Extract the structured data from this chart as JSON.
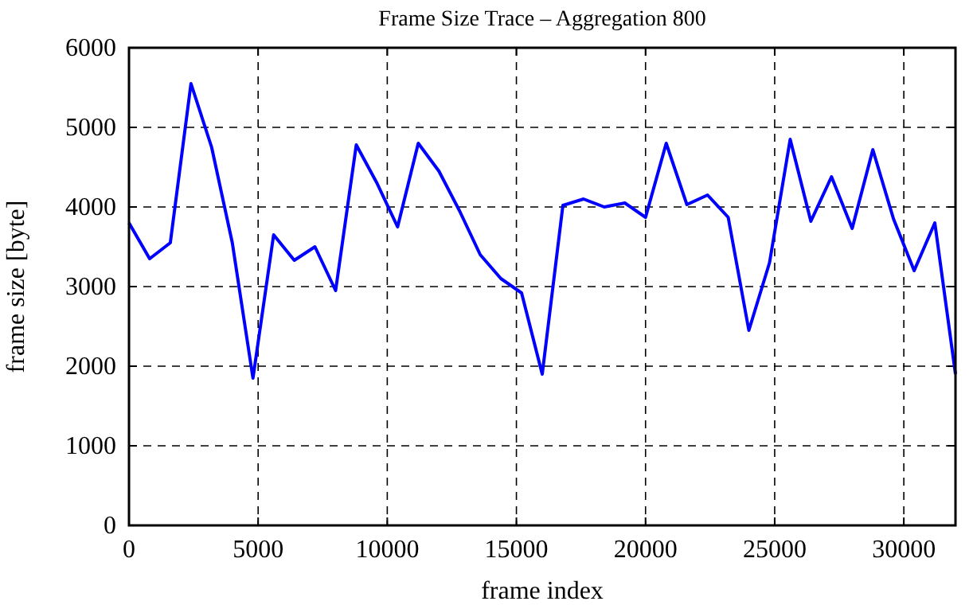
{
  "chart_data": {
    "type": "line",
    "title": "Frame Size Trace – Aggregation 800",
    "xlabel": "frame index",
    "ylabel": "frame size [byte]",
    "x": [
      0,
      800,
      1600,
      2400,
      3200,
      4000,
      4800,
      5600,
      6400,
      7200,
      8000,
      8800,
      9600,
      10400,
      11200,
      12000,
      12800,
      13600,
      14400,
      15200,
      16000,
      16800,
      17600,
      18400,
      19200,
      20000,
      20800,
      21600,
      22400,
      23200,
      24000,
      24800,
      25600,
      26400,
      27200,
      28000,
      28800,
      29600,
      30400,
      31200,
      32000
    ],
    "series": [
      {
        "color": "#0000ff",
        "values": [
          3800,
          3350,
          3550,
          5550,
          4750,
          3550,
          1850,
          3650,
          3330,
          3500,
          2950,
          4780,
          4300,
          3750,
          4800,
          4450,
          3950,
          3400,
          3100,
          2920,
          1900,
          4020,
          4100,
          4000,
          4050,
          3870,
          4800,
          4030,
          4150,
          3870,
          2450,
          3300,
          4850,
          3820,
          4380,
          3730,
          4720,
          3850,
          3200,
          3800,
          1900
        ]
      }
    ],
    "xlim": [
      0,
      32000
    ],
    "xticks": [
      0,
      5000,
      10000,
      15000,
      20000,
      25000,
      30000
    ],
    "ylim": [
      0,
      6000
    ],
    "yticks": [
      0,
      1000,
      2000,
      3000,
      4000,
      5000,
      6000
    ],
    "grid": true,
    "line_style": "solid"
  }
}
